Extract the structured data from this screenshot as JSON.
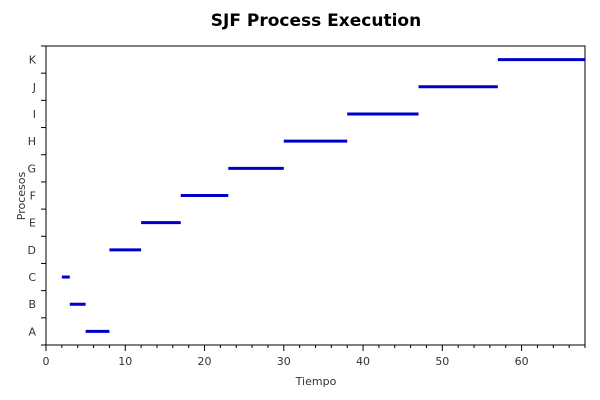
{
  "chart_data": {
    "type": "gantt",
    "title": "SJF Process Execution",
    "xlabel": "Tiempo",
    "ylabel": "Procesos",
    "xlim": [
      0,
      68
    ],
    "xticks": [
      0,
      10,
      20,
      30,
      40,
      50,
      60
    ],
    "categories": [
      "A",
      "B",
      "C",
      "D",
      "E",
      "F",
      "G",
      "H",
      "I",
      "J",
      "K"
    ],
    "bars": [
      {
        "process": "A",
        "start": 5,
        "end": 8
      },
      {
        "process": "B",
        "start": 3,
        "end": 5
      },
      {
        "process": "C",
        "start": 2,
        "end": 3
      },
      {
        "process": "D",
        "start": 8,
        "end": 12
      },
      {
        "process": "E",
        "start": 12,
        "end": 17
      },
      {
        "process": "F",
        "start": 17,
        "end": 23
      },
      {
        "process": "G",
        "start": 23,
        "end": 30
      },
      {
        "process": "H",
        "start": 30,
        "end": 38
      },
      {
        "process": "I",
        "start": 38,
        "end": 47
      },
      {
        "process": "J",
        "start": 47,
        "end": 57
      },
      {
        "process": "K",
        "start": 57,
        "end": 68
      }
    ],
    "bar_color": "#0000cc",
    "grid": false
  }
}
